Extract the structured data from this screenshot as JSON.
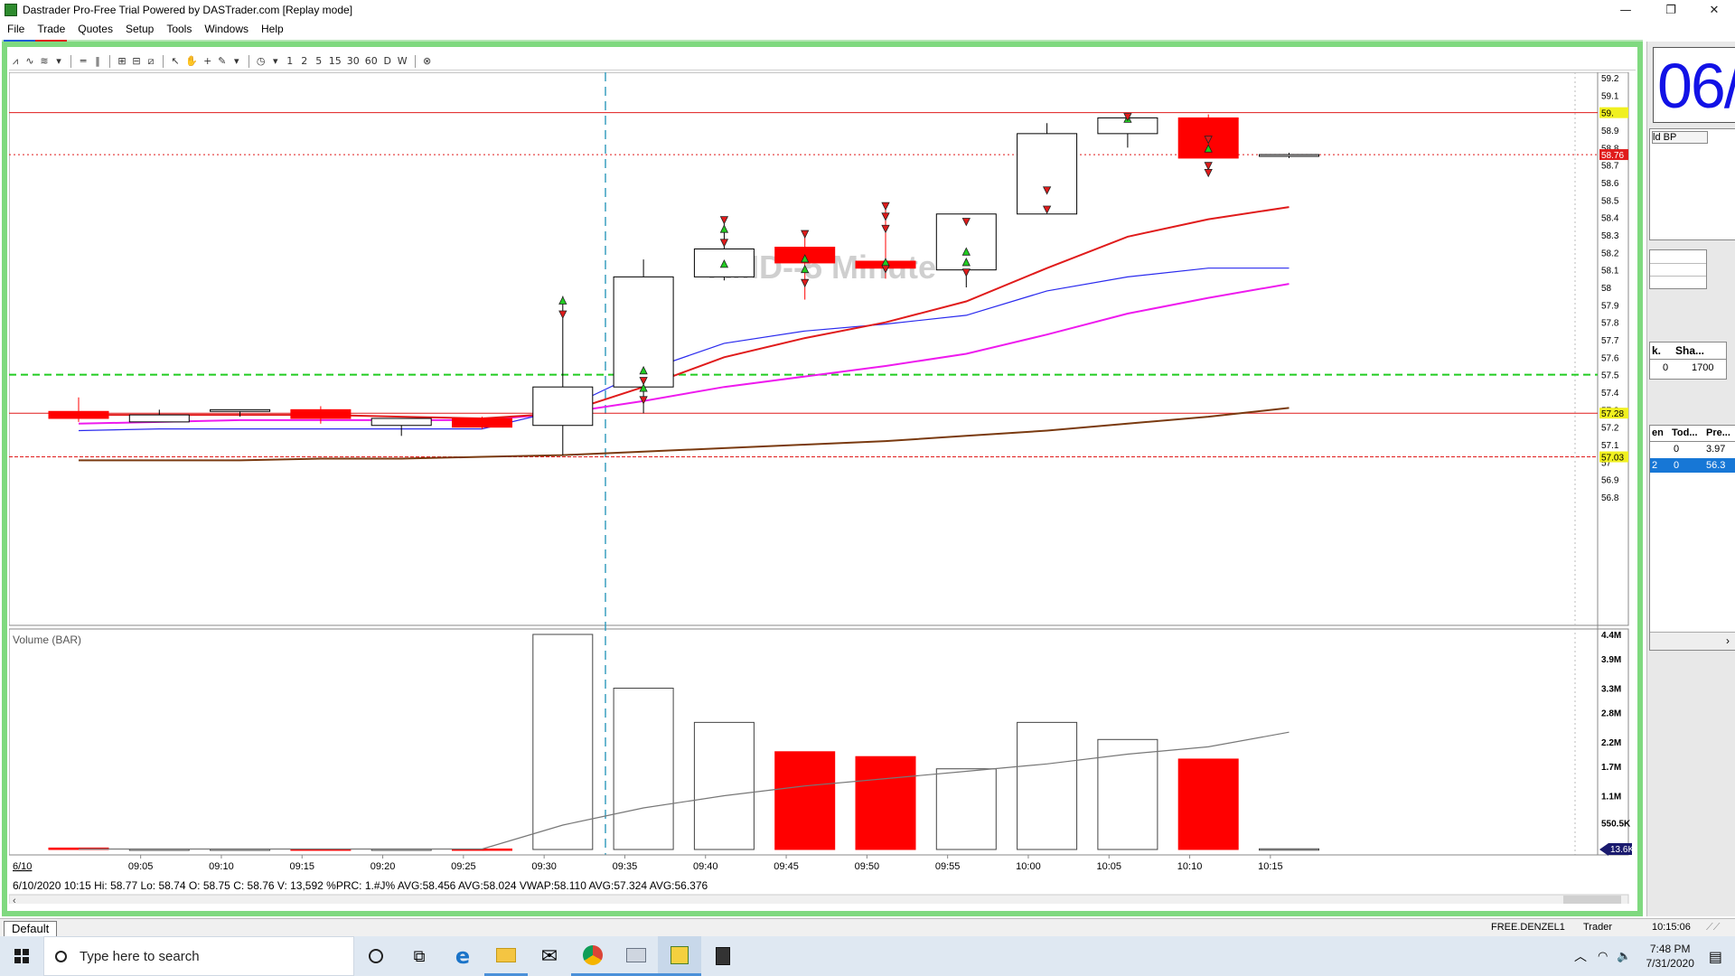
{
  "window": {
    "title": "Dastrader Pro-Free Trial Powered by DASTrader.com [Replay mode]",
    "minimize_glyph": "—",
    "maximize_glyph": "❐",
    "close_glyph": "✕"
  },
  "menu": [
    "File",
    "Trade",
    "Quotes",
    "Setup",
    "Tools",
    "Windows",
    "Help"
  ],
  "chart_toolbar": {
    "periods": [
      "1",
      "2",
      "5",
      "15",
      "30",
      "60",
      "D",
      "W"
    ]
  },
  "chart": {
    "watermark": "AMD--5 Minute",
    "volume_title": "Volume (BAR)",
    "date_marker": "6/10",
    "info_line": "6/10/2020 10:15  Hi: 58.77  Lo: 58.74  O: 58.75  C: 58.76  V: 13,592 %PRC: 1.#J% AVG:58.456 AVG:58.024 VWAP:58.110 AVG:57.324 AVG:56.376",
    "price_axis_labels": [
      "59.2",
      "59.1",
      "58.9",
      "58.8",
      "58.7",
      "58.6",
      "58.5",
      "58.4",
      "58.3",
      "58.2",
      "58.1",
      "58",
      "57.9",
      "57.8",
      "57.7",
      "57.6",
      "57.5",
      "57.4",
      "57.3",
      "57.2",
      "57.1",
      "57",
      "56.9",
      "56.8"
    ],
    "price_tags": [
      {
        "label": "59.",
        "value": 59.0,
        "bg": "#f0f020",
        "fg": "#000000"
      },
      {
        "label": "58.76",
        "value": 58.76,
        "bg": "#e01b1b",
        "fg": "#ffffff"
      },
      {
        "label": "57.28",
        "value": 57.28,
        "bg": "#f0f020",
        "fg": "#000000"
      },
      {
        "label": "57.03",
        "value": 57.03,
        "bg": "#f0f020",
        "fg": "#000000"
      }
    ],
    "volume_axis_labels": [
      "4.4M",
      "3.9M",
      "3.3M",
      "2.8M",
      "2.2M",
      "1.7M",
      "1.1M",
      "550.5K"
    ],
    "volume_tag": "13.6K",
    "time_labels": [
      "09:05",
      "09:10",
      "09:15",
      "09:20",
      "09:25",
      "09:30",
      "09:35",
      "09:40",
      "09:45",
      "09:50",
      "09:55",
      "10:00",
      "10:05",
      "10:10",
      "10:15"
    ],
    "colors": {
      "bear": "#ff0000",
      "bull": "#ffffff",
      "ema_red": "#e01b1b",
      "ema_blue": "#2a2aee",
      "ema_magenta": "#ee1aee",
      "ema_brown": "#7a3a10",
      "support_green": "#22cc22"
    }
  },
  "chart_data": {
    "type": "candlestick",
    "title": "AMD--5 Minute",
    "x": [
      "09:00",
      "09:05",
      "09:10",
      "09:15",
      "09:20",
      "09:25",
      "09:30",
      "09:35",
      "09:40",
      "09:45",
      "09:50",
      "09:55",
      "10:00",
      "10:05",
      "10:10",
      "10:15"
    ],
    "candles": [
      {
        "t": "09:00",
        "o": 57.29,
        "h": 57.37,
        "l": 57.23,
        "c": 57.25
      },
      {
        "t": "09:05",
        "o": 57.23,
        "h": 57.3,
        "l": 57.23,
        "c": 57.27
      },
      {
        "t": "09:10",
        "o": 57.29,
        "h": 57.3,
        "l": 57.26,
        "c": 57.3
      },
      {
        "t": "09:15",
        "o": 57.3,
        "h": 57.32,
        "l": 57.22,
        "c": 57.25
      },
      {
        "t": "09:20",
        "o": 57.21,
        "h": 57.24,
        "l": 57.15,
        "c": 57.25
      },
      {
        "t": "09:25",
        "o": 57.25,
        "h": 57.26,
        "l": 57.19,
        "c": 57.2
      },
      {
        "t": "09:30",
        "o": 57.21,
        "h": 57.95,
        "l": 57.04,
        "c": 57.43
      },
      {
        "t": "09:35",
        "o": 57.43,
        "h": 58.16,
        "l": 57.28,
        "c": 58.06
      },
      {
        "t": "09:40",
        "o": 58.06,
        "h": 58.37,
        "l": 58.04,
        "c": 58.22
      },
      {
        "t": "09:45",
        "o": 58.23,
        "h": 58.31,
        "l": 57.93,
        "c": 58.14
      },
      {
        "t": "09:50",
        "o": 58.15,
        "h": 58.47,
        "l": 58.05,
        "c": 58.11
      },
      {
        "t": "09:55",
        "o": 58.1,
        "h": 58.42,
        "l": 58.0,
        "c": 58.42
      },
      {
        "t": "10:00",
        "o": 58.42,
        "h": 58.94,
        "l": 58.42,
        "c": 58.88
      },
      {
        "t": "10:05",
        "o": 58.88,
        "h": 58.99,
        "l": 58.8,
        "c": 58.97
      },
      {
        "t": "10:10",
        "o": 58.97,
        "h": 58.99,
        "l": 58.76,
        "c": 58.74
      },
      {
        "t": "10:15",
        "o": 58.75,
        "h": 58.77,
        "l": 58.74,
        "c": 58.76
      }
    ],
    "volume": [
      0.03,
      0.01,
      0.01,
      0.01,
      0.01,
      0.01,
      4.4,
      3.3,
      2.6,
      2.0,
      1.9,
      1.65,
      2.6,
      2.25,
      1.85,
      0.0136
    ],
    "volume_avg": [
      0.01,
      0.01,
      0.01,
      0.01,
      0.01,
      0.01,
      0.5,
      0.85,
      1.1,
      1.3,
      1.45,
      1.6,
      1.75,
      1.95,
      2.1,
      2.4
    ],
    "volume_ylim": [
      0,
      4.4
    ],
    "ylim": [
      56.8,
      59.25
    ],
    "reference_lines": [
      59.0,
      58.76,
      57.28,
      57.03,
      57.5
    ]
  },
  "right_panel": {
    "clock_text": "06/",
    "bp_label": "ld BP",
    "pos_headers": [
      "k.",
      "Sha..."
    ],
    "pos_values": [
      "0",
      "1700"
    ],
    "tbl_headers": [
      "en",
      "Tod...",
      "Pre..."
    ],
    "tbl_row1": [
      "",
      "0",
      "3.97"
    ],
    "tbl_row2": [
      "2",
      "0",
      "56.3"
    ]
  },
  "status": {
    "layout_tab": "Default",
    "account": "FREE.DENZEL1",
    "role": "Trader",
    "time": "10:15:06"
  },
  "taskbar": {
    "search_placeholder": "Type here to search",
    "clock_time": "7:48 PM",
    "clock_date": "7/31/2020"
  }
}
